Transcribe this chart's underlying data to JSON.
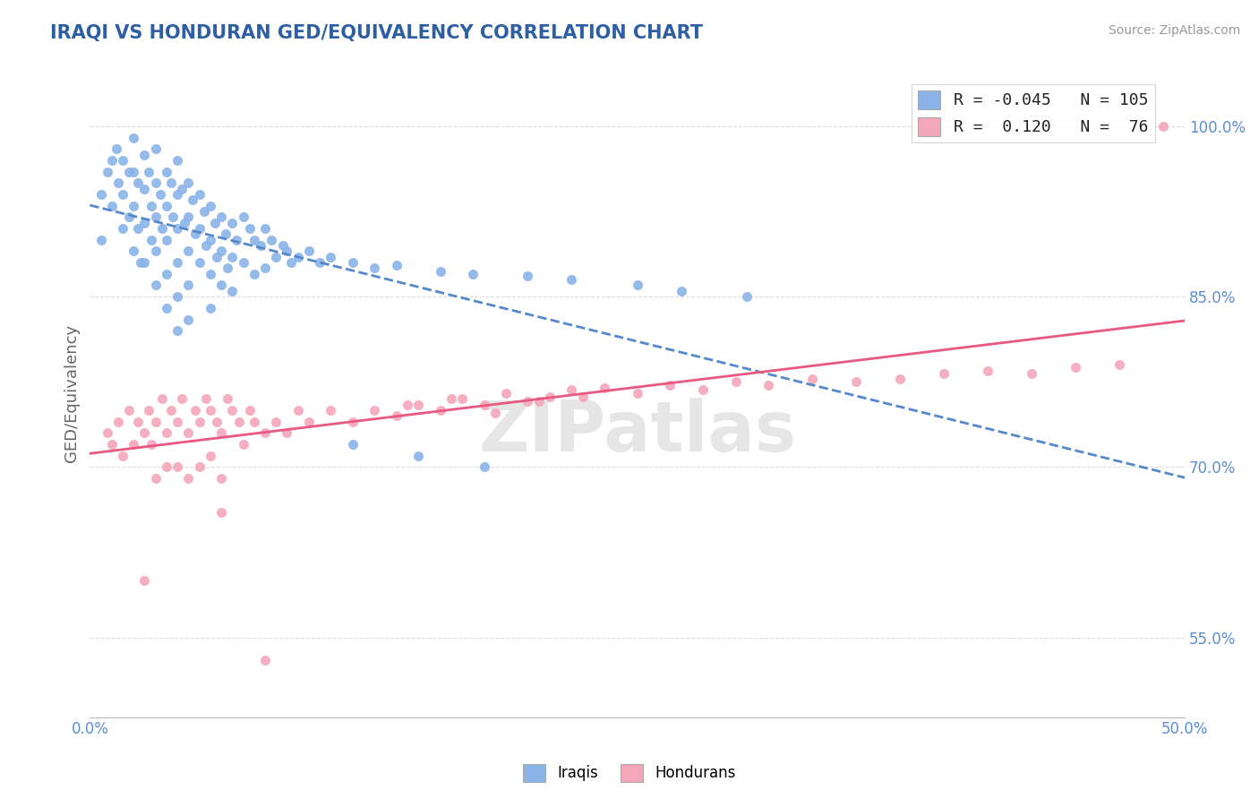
{
  "title": "IRAQI VS HONDURAN GED/EQUIVALENCY CORRELATION CHART",
  "source": "Source: ZipAtlas.com",
  "ylabel": "GED/Equivalency",
  "xlim": [
    0.0,
    0.5
  ],
  "ylim": [
    0.48,
    1.05
  ],
  "yticks": [
    0.55,
    0.7,
    0.85,
    1.0
  ],
  "ytick_labels": [
    "55.0%",
    "70.0%",
    "85.0%",
    "100.0%"
  ],
  "xticks": [
    0.0,
    0.5
  ],
  "xtick_labels": [
    "0.0%",
    "50.0%"
  ],
  "iraqi_color": "#8AB4E8",
  "honduran_color": "#F4A7B9",
  "iraqi_R": -0.045,
  "iraqi_N": 105,
  "honduran_R": 0.12,
  "honduran_N": 76,
  "title_color": "#2E5FA3",
  "tick_color": "#5B8DD9",
  "legend_border_color": "#CCCCCC",
  "grid_color": "#DDDDDD",
  "iraqi_trend_color": "#5588CC",
  "honduran_trend_color": "#E85880",
  "iraqi_dots_x": [
    0.005,
    0.005,
    0.008,
    0.01,
    0.01,
    0.012,
    0.013,
    0.015,
    0.015,
    0.015,
    0.018,
    0.018,
    0.02,
    0.02,
    0.02,
    0.02,
    0.022,
    0.022,
    0.023,
    0.025,
    0.025,
    0.025,
    0.025,
    0.027,
    0.028,
    0.028,
    0.03,
    0.03,
    0.03,
    0.03,
    0.03,
    0.032,
    0.033,
    0.035,
    0.035,
    0.035,
    0.035,
    0.035,
    0.037,
    0.038,
    0.04,
    0.04,
    0.04,
    0.04,
    0.04,
    0.04,
    0.042,
    0.043,
    0.045,
    0.045,
    0.045,
    0.045,
    0.045,
    0.047,
    0.048,
    0.05,
    0.05,
    0.05,
    0.052,
    0.053,
    0.055,
    0.055,
    0.055,
    0.055,
    0.057,
    0.058,
    0.06,
    0.06,
    0.06,
    0.062,
    0.063,
    0.065,
    0.065,
    0.065,
    0.067,
    0.07,
    0.07,
    0.073,
    0.075,
    0.075,
    0.078,
    0.08,
    0.08,
    0.083,
    0.085,
    0.088,
    0.09,
    0.092,
    0.095,
    0.1,
    0.105,
    0.11,
    0.12,
    0.13,
    0.14,
    0.16,
    0.175,
    0.2,
    0.22,
    0.25,
    0.27,
    0.3,
    0.12,
    0.15,
    0.18
  ],
  "iraqi_dots_y": [
    0.94,
    0.9,
    0.96,
    0.97,
    0.93,
    0.98,
    0.95,
    0.97,
    0.94,
    0.91,
    0.96,
    0.92,
    0.99,
    0.96,
    0.93,
    0.89,
    0.95,
    0.91,
    0.88,
    0.975,
    0.945,
    0.915,
    0.88,
    0.96,
    0.93,
    0.9,
    0.98,
    0.95,
    0.92,
    0.89,
    0.86,
    0.94,
    0.91,
    0.96,
    0.93,
    0.9,
    0.87,
    0.84,
    0.95,
    0.92,
    0.97,
    0.94,
    0.91,
    0.88,
    0.85,
    0.82,
    0.945,
    0.915,
    0.95,
    0.92,
    0.89,
    0.86,
    0.83,
    0.935,
    0.905,
    0.94,
    0.91,
    0.88,
    0.925,
    0.895,
    0.93,
    0.9,
    0.87,
    0.84,
    0.915,
    0.885,
    0.92,
    0.89,
    0.86,
    0.905,
    0.875,
    0.915,
    0.885,
    0.855,
    0.9,
    0.92,
    0.88,
    0.91,
    0.9,
    0.87,
    0.895,
    0.91,
    0.875,
    0.9,
    0.885,
    0.895,
    0.89,
    0.88,
    0.885,
    0.89,
    0.88,
    0.885,
    0.88,
    0.875,
    0.878,
    0.872,
    0.87,
    0.868,
    0.865,
    0.86,
    0.855,
    0.85,
    0.72,
    0.71,
    0.7
  ],
  "honduran_dots_x": [
    0.008,
    0.01,
    0.013,
    0.015,
    0.018,
    0.02,
    0.022,
    0.025,
    0.027,
    0.028,
    0.03,
    0.03,
    0.033,
    0.035,
    0.035,
    0.037,
    0.04,
    0.04,
    0.042,
    0.045,
    0.045,
    0.048,
    0.05,
    0.05,
    0.053,
    0.055,
    0.055,
    0.058,
    0.06,
    0.06,
    0.063,
    0.065,
    0.068,
    0.07,
    0.073,
    0.075,
    0.08,
    0.085,
    0.09,
    0.095,
    0.1,
    0.11,
    0.12,
    0.13,
    0.14,
    0.15,
    0.16,
    0.17,
    0.18,
    0.19,
    0.2,
    0.21,
    0.22,
    0.235,
    0.25,
    0.265,
    0.28,
    0.295,
    0.31,
    0.33,
    0.35,
    0.37,
    0.39,
    0.41,
    0.43,
    0.45,
    0.47,
    0.49,
    0.145,
    0.165,
    0.185,
    0.205,
    0.225,
    0.025,
    0.06,
    0.08
  ],
  "honduran_dots_y": [
    0.73,
    0.72,
    0.74,
    0.71,
    0.75,
    0.72,
    0.74,
    0.73,
    0.75,
    0.72,
    0.74,
    0.69,
    0.76,
    0.73,
    0.7,
    0.75,
    0.74,
    0.7,
    0.76,
    0.73,
    0.69,
    0.75,
    0.74,
    0.7,
    0.76,
    0.75,
    0.71,
    0.74,
    0.73,
    0.69,
    0.76,
    0.75,
    0.74,
    0.72,
    0.75,
    0.74,
    0.73,
    0.74,
    0.73,
    0.75,
    0.74,
    0.75,
    0.74,
    0.75,
    0.745,
    0.755,
    0.75,
    0.76,
    0.755,
    0.765,
    0.758,
    0.762,
    0.768,
    0.77,
    0.765,
    0.772,
    0.768,
    0.775,
    0.772,
    0.778,
    0.775,
    0.778,
    0.782,
    0.785,
    0.782,
    0.788,
    0.79,
    1.0,
    0.755,
    0.76,
    0.748,
    0.758,
    0.762,
    0.6,
    0.66,
    0.53
  ]
}
